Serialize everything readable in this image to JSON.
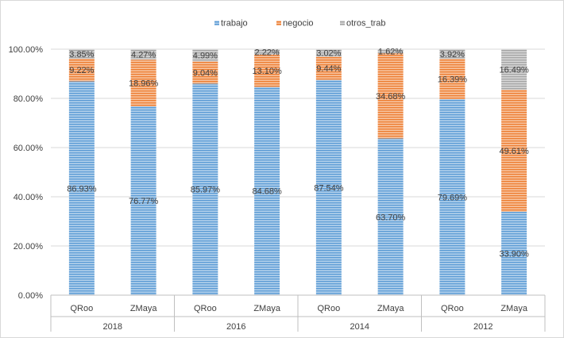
{
  "chart_data": {
    "type": "bar",
    "stacked": "percent",
    "title": "",
    "xlabel": "",
    "ylabel": "",
    "ylim": [
      0,
      100
    ],
    "y_ticks": [
      "0.00%",
      "20.00%",
      "40.00%",
      "60.00%",
      "80.00%",
      "100.00%"
    ],
    "grid": true,
    "legend_position": "top",
    "groups": [
      {
        "label": "2018",
        "categories": [
          "QRoo",
          "ZMaya"
        ]
      },
      {
        "label": "2016",
        "categories": [
          "QRoo",
          "ZMaya"
        ]
      },
      {
        "label": "2014",
        "categories": [
          "QRoo",
          "ZMaya"
        ]
      },
      {
        "label": "2012",
        "categories": [
          "QRoo",
          "ZMaya"
        ]
      }
    ],
    "series": [
      {
        "name": "trabajo",
        "color": "#5b9bd5",
        "values": [
          86.93,
          76.77,
          85.97,
          84.68,
          87.54,
          63.7,
          79.69,
          33.9
        ],
        "labels": [
          "86.93%",
          "76.77%",
          "85.97%",
          "84.68%",
          "87.54%",
          "63.70%",
          "79.69%",
          "33.90%"
        ]
      },
      {
        "name": "negocio",
        "color": "#ed7d31",
        "values": [
          9.22,
          18.96,
          9.04,
          13.1,
          9.44,
          34.68,
          16.39,
          49.61
        ],
        "labels": [
          "9.22%",
          "18.96%",
          "9.04%",
          "13.10%",
          "9.44%",
          "34.68%",
          "16.39%",
          "49.61%"
        ]
      },
      {
        "name": "otros_trab",
        "color": "#a5a5a5",
        "values": [
          3.85,
          4.27,
          4.99,
          2.22,
          3.02,
          1.62,
          3.92,
          16.49
        ],
        "labels": [
          "3.85%",
          "4.27%",
          "4.99%",
          "2.22%",
          "3.02%",
          "1.62%",
          "3.92%",
          "16.49%"
        ]
      }
    ]
  }
}
